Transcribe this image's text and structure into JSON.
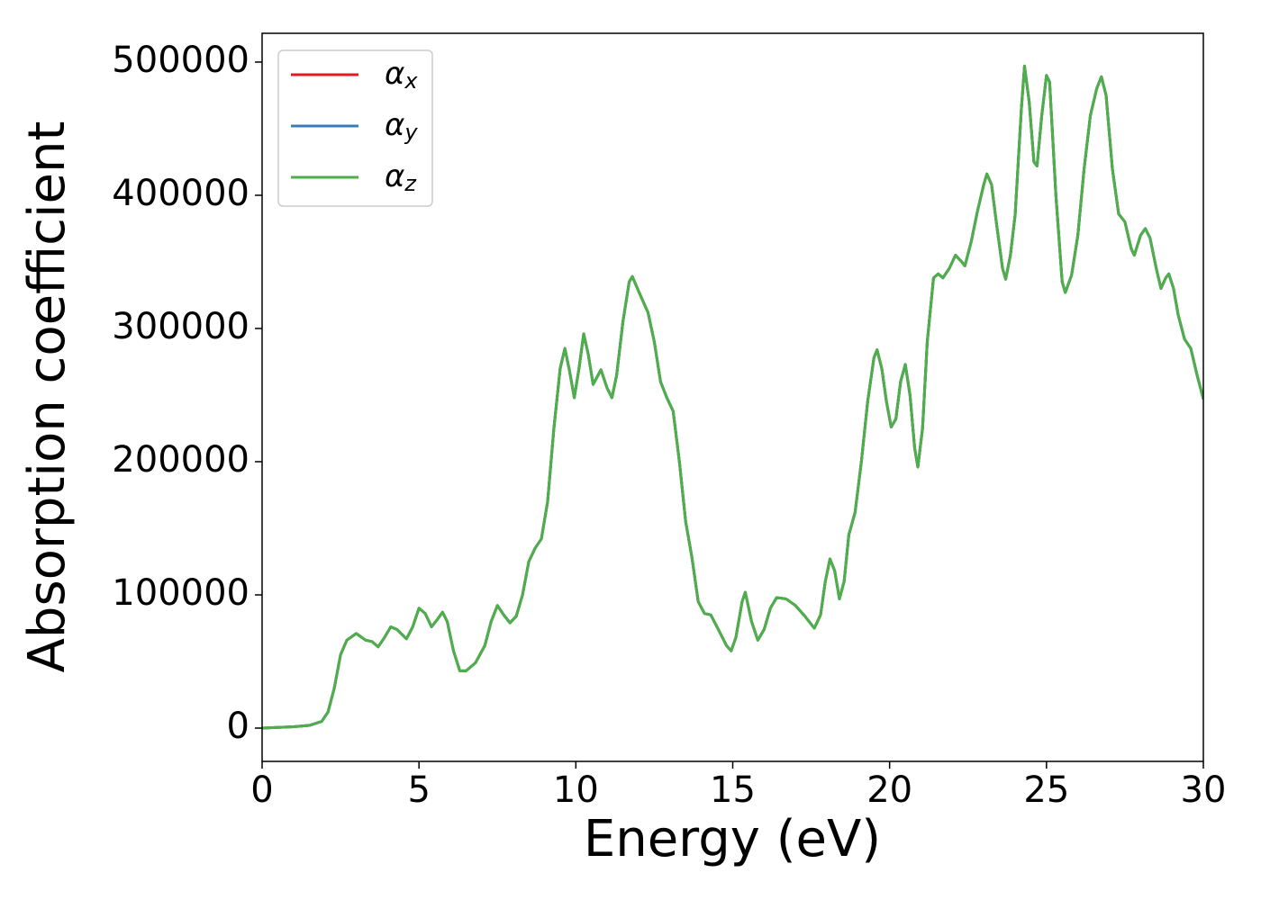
{
  "chart_data": {
    "type": "line",
    "xlabel": "Energy (eV)",
    "ylabel": "Absorption coefficient",
    "x": [
      0,
      1,
      1.5,
      1.9,
      2.1,
      2.3,
      2.5,
      2.7,
      3,
      3.3,
      3.5,
      3.7,
      3.9,
      4.1,
      4.3,
      4.6,
      4.8,
      5,
      5.2,
      5.4,
      5.6,
      5.75,
      5.9,
      6.1,
      6.3,
      6.5,
      6.8,
      7.1,
      7.3,
      7.5,
      7.7,
      7.9,
      8.1,
      8.3,
      8.5,
      8.7,
      8.9,
      9.1,
      9.3,
      9.5,
      9.65,
      9.8,
      9.95,
      10.1,
      10.25,
      10.4,
      10.55,
      10.8,
      11,
      11.15,
      11.3,
      11.5,
      11.7,
      11.8,
      12,
      12.3,
      12.5,
      12.7,
      12.9,
      13.1,
      13.3,
      13.5,
      13.7,
      13.9,
      14.1,
      14.3,
      14.5,
      14.8,
      14.95,
      15.1,
      15.3,
      15.4,
      15.6,
      15.8,
      16,
      16.2,
      16.4,
      16.7,
      17,
      17.3,
      17.6,
      17.8,
      17.95,
      18.1,
      18.25,
      18.4,
      18.55,
      18.7,
      18.9,
      19.1,
      19.3,
      19.5,
      19.6,
      19.75,
      19.9,
      20.05,
      20.2,
      20.35,
      20.5,
      20.65,
      20.8,
      20.9,
      21.05,
      21.2,
      21.4,
      21.55,
      21.7,
      21.9,
      22.1,
      22.3,
      22.4,
      22.6,
      22.8,
      23,
      23.1,
      23.25,
      23.4,
      23.6,
      23.7,
      23.85,
      24,
      24.2,
      24.3,
      24.45,
      24.6,
      24.7,
      24.85,
      25,
      25.1,
      25.3,
      25.5,
      25.6,
      25.8,
      26,
      26.2,
      26.4,
      26.6,
      26.75,
      26.9,
      27.1,
      27.3,
      27.5,
      27.7,
      27.8,
      28,
      28.15,
      28.3,
      28.5,
      28.65,
      28.8,
      28.9,
      29.05,
      29.2,
      29.4,
      29.6,
      29.8,
      30
    ],
    "series": [
      {
        "name": "αx",
        "color": "#e41a1c",
        "values": [
          0,
          1000,
          2000,
          5000,
          12000,
          30000,
          55000,
          66000,
          71000,
          66000,
          65000,
          61000,
          68000,
          76000,
          74000,
          67000,
          76000,
          90000,
          86000,
          76000,
          82000,
          87000,
          80000,
          58000,
          43000,
          43000,
          49000,
          62000,
          80000,
          92000,
          85000,
          79000,
          84000,
          100000,
          125000,
          135000,
          142000,
          170000,
          225000,
          270000,
          285000,
          268000,
          248000,
          270000,
          296000,
          280000,
          258000,
          269000,
          255000,
          248000,
          265000,
          305000,
          335000,
          339000,
          328000,
          312000,
          290000,
          260000,
          248000,
          238000,
          200000,
          155000,
          128000,
          95000,
          86000,
          85000,
          76000,
          62000,
          58000,
          68000,
          95000,
          102000,
          80000,
          66000,
          74000,
          90000,
          98000,
          97000,
          92000,
          84000,
          75000,
          85000,
          110000,
          127000,
          118000,
          97000,
          110000,
          145000,
          162000,
          200000,
          245000,
          278000,
          284000,
          270000,
          245000,
          226000,
          232000,
          260000,
          273000,
          250000,
          210000,
          196000,
          225000,
          290000,
          338000,
          341000,
          338000,
          345000,
          355000,
          350000,
          347000,
          365000,
          388000,
          408000,
          416000,
          408000,
          380000,
          345000,
          337000,
          355000,
          385000,
          465000,
          497000,
          470000,
          425000,
          422000,
          460000,
          490000,
          485000,
          400000,
          335000,
          327000,
          340000,
          370000,
          420000,
          460000,
          480000,
          489000,
          475000,
          420000,
          386000,
          380000,
          360000,
          355000,
          370000,
          375000,
          368000,
          345000,
          330000,
          338000,
          341000,
          330000,
          310000,
          292000,
          285000,
          265000,
          247000
        ]
      },
      {
        "name": "αy",
        "color": "#377eb8",
        "values": [
          0,
          1000,
          2000,
          5000,
          12000,
          30000,
          55000,
          66000,
          71000,
          66000,
          65000,
          61000,
          68000,
          76000,
          74000,
          67000,
          76000,
          90000,
          86000,
          76000,
          82000,
          87000,
          80000,
          58000,
          43000,
          43000,
          49000,
          62000,
          80000,
          92000,
          85000,
          79000,
          84000,
          100000,
          125000,
          135000,
          142000,
          170000,
          225000,
          270000,
          285000,
          268000,
          248000,
          270000,
          296000,
          280000,
          258000,
          269000,
          255000,
          248000,
          265000,
          305000,
          335000,
          339000,
          328000,
          312000,
          290000,
          260000,
          248000,
          238000,
          200000,
          155000,
          128000,
          95000,
          86000,
          85000,
          76000,
          62000,
          58000,
          68000,
          95000,
          102000,
          80000,
          66000,
          74000,
          90000,
          98000,
          97000,
          92000,
          84000,
          75000,
          85000,
          110000,
          127000,
          118000,
          97000,
          110000,
          145000,
          162000,
          200000,
          245000,
          278000,
          284000,
          270000,
          245000,
          226000,
          232000,
          260000,
          273000,
          250000,
          210000,
          196000,
          225000,
          290000,
          338000,
          341000,
          338000,
          345000,
          355000,
          350000,
          347000,
          365000,
          388000,
          408000,
          416000,
          408000,
          380000,
          345000,
          337000,
          355000,
          385000,
          465000,
          497000,
          470000,
          425000,
          422000,
          460000,
          490000,
          485000,
          400000,
          335000,
          327000,
          340000,
          370000,
          420000,
          460000,
          480000,
          489000,
          475000,
          420000,
          386000,
          380000,
          360000,
          355000,
          370000,
          375000,
          368000,
          345000,
          330000,
          338000,
          341000,
          330000,
          310000,
          292000,
          285000,
          265000,
          247000
        ]
      },
      {
        "name": "αz",
        "color": "#4daf4a",
        "values": [
          0,
          1000,
          2000,
          5000,
          12000,
          30000,
          55000,
          66000,
          71000,
          66000,
          65000,
          61000,
          68000,
          76000,
          74000,
          67000,
          76000,
          90000,
          86000,
          76000,
          82000,
          87000,
          80000,
          58000,
          43000,
          43000,
          49000,
          62000,
          80000,
          92000,
          85000,
          79000,
          84000,
          100000,
          125000,
          135000,
          142000,
          170000,
          225000,
          270000,
          285000,
          268000,
          248000,
          270000,
          296000,
          280000,
          258000,
          269000,
          255000,
          248000,
          265000,
          305000,
          335000,
          339000,
          328000,
          312000,
          290000,
          260000,
          248000,
          238000,
          200000,
          155000,
          128000,
          95000,
          86000,
          85000,
          76000,
          62000,
          58000,
          68000,
          95000,
          102000,
          80000,
          66000,
          74000,
          90000,
          98000,
          97000,
          92000,
          84000,
          75000,
          85000,
          110000,
          127000,
          118000,
          97000,
          110000,
          145000,
          162000,
          200000,
          245000,
          278000,
          284000,
          270000,
          245000,
          226000,
          232000,
          260000,
          273000,
          250000,
          210000,
          196000,
          225000,
          290000,
          338000,
          341000,
          338000,
          345000,
          355000,
          350000,
          347000,
          365000,
          388000,
          408000,
          416000,
          408000,
          380000,
          345000,
          337000,
          355000,
          385000,
          465000,
          497000,
          470000,
          425000,
          422000,
          460000,
          490000,
          485000,
          400000,
          335000,
          327000,
          340000,
          370000,
          420000,
          460000,
          480000,
          489000,
          475000,
          420000,
          386000,
          380000,
          360000,
          355000,
          370000,
          375000,
          368000,
          345000,
          330000,
          338000,
          341000,
          330000,
          310000,
          292000,
          285000,
          265000,
          247000
        ]
      }
    ],
    "xlim": [
      0,
      30
    ],
    "xticks": [
      0,
      5,
      10,
      15,
      20,
      25,
      30
    ],
    "ylim": [
      -25000,
      521600
    ],
    "yticks": [
      0,
      100000,
      200000,
      300000,
      400000,
      500000
    ],
    "grid": false,
    "legend": "upper left"
  }
}
